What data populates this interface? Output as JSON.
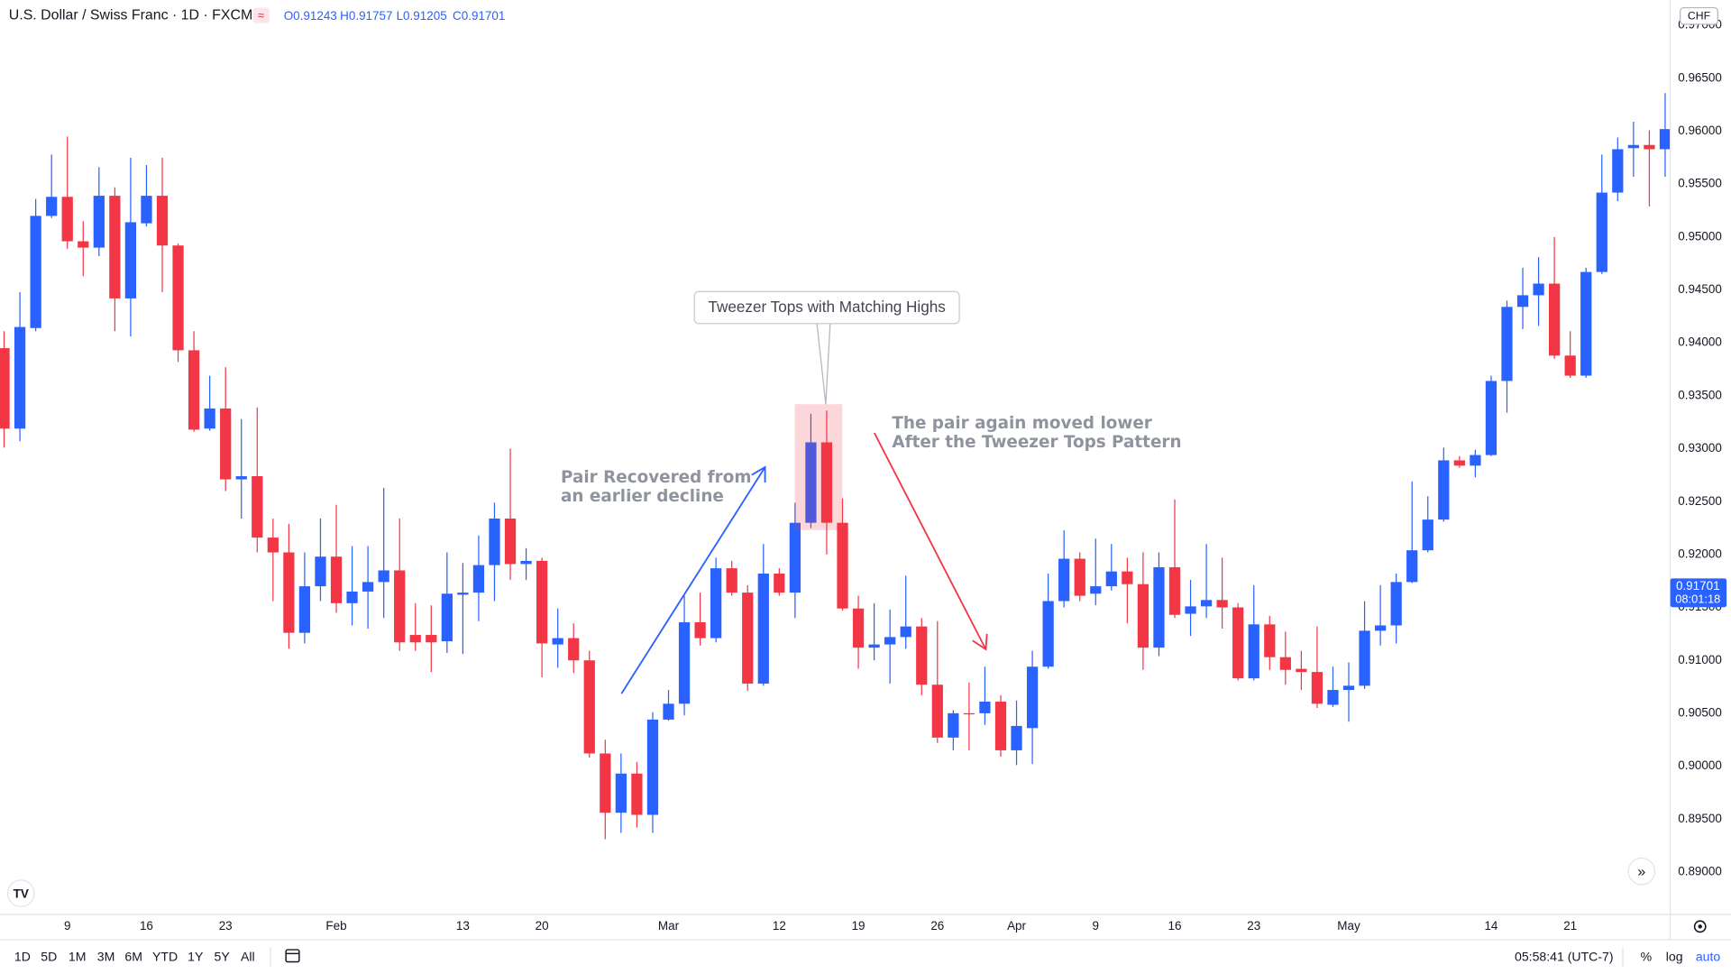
{
  "chart_data": {
    "type": "candlestick",
    "title": "U.S. Dollar / Swiss Franc · 1D · FXCM",
    "legend_ohlc": [
      "O0.91243",
      "H0.91757",
      "L0.91205",
      "C0.91701"
    ],
    "currency": "CHF",
    "last_price": 0.91701,
    "countdown": "08:01:18",
    "up_color": "#2962ff",
    "down_color": "#f23645",
    "grid": false,
    "ylim": [
      0.8861,
      0.9724
    ],
    "yticks": [
      {
        "value": 0.89,
        "label": "0.89000"
      },
      {
        "value": 0.895,
        "label": "0.89500"
      },
      {
        "value": 0.9,
        "label": "0.90000"
      },
      {
        "value": 0.905,
        "label": "0.90500"
      },
      {
        "value": 0.91,
        "label": "0.91000"
      },
      {
        "value": 0.915,
        "label": "0.91500"
      },
      {
        "value": 0.92,
        "label": "0.92000"
      },
      {
        "value": 0.925,
        "label": "0.92500"
      },
      {
        "value": 0.93,
        "label": "0.93000"
      },
      {
        "value": 0.935,
        "label": "0.93500"
      },
      {
        "value": 0.94,
        "label": "0.94000"
      },
      {
        "value": 0.945,
        "label": "0.94500"
      },
      {
        "value": 0.95,
        "label": "0.95000"
      },
      {
        "value": 0.955,
        "label": "0.95500"
      },
      {
        "value": 0.96,
        "label": "0.96000"
      },
      {
        "value": 0.965,
        "label": "0.96500"
      },
      {
        "value": 0.97,
        "label": "0.97000"
      }
    ],
    "categories": [
      null,
      null,
      null,
      null,
      "9",
      null,
      null,
      null,
      null,
      "16",
      null,
      null,
      null,
      null,
      "23",
      null,
      null,
      null,
      null,
      null,
      null,
      "Feb",
      null,
      null,
      null,
      null,
      null,
      null,
      null,
      "13",
      null,
      null,
      null,
      null,
      "20",
      null,
      null,
      null,
      null,
      null,
      null,
      null,
      "Mar",
      null,
      null,
      null,
      null,
      null,
      null,
      "12",
      null,
      null,
      null,
      null,
      "19",
      null,
      null,
      null,
      null,
      "26",
      null,
      null,
      null,
      null,
      "Apr",
      null,
      null,
      null,
      null,
      "9",
      null,
      null,
      null,
      null,
      "16",
      null,
      null,
      null,
      null,
      "23",
      null,
      null,
      null,
      null,
      null,
      "May",
      null,
      null,
      null,
      null,
      null,
      null,
      null,
      null,
      "14",
      null,
      null,
      null,
      null,
      "21",
      null,
      null,
      null,
      null,
      null,
      null
    ],
    "open": [
      0.9395,
      0.9319,
      0.9414,
      0.952,
      0.9538,
      0.9496,
      0.949,
      0.9539,
      0.9442,
      0.9513,
      0.9539,
      0.9492,
      0.9393,
      0.9319,
      0.9338,
      0.9271,
      0.9274,
      0.9216,
      0.9202,
      0.9126,
      0.917,
      0.9198,
      0.9154,
      0.9165,
      0.9174,
      0.9185,
      0.9124,
      0.9124,
      0.9118,
      0.9162,
      0.9164,
      0.919,
      0.9234,
      0.9191,
      0.9194,
      0.9115,
      0.9121,
      0.91,
      0.9012,
      0.8956,
      0.8993,
      0.8954,
      0.9044,
      0.9059,
      0.9136,
      0.9121,
      0.9187,
      0.9164,
      0.9078,
      0.9182,
      0.9164,
      0.923,
      0.9306,
      0.923,
      0.9149,
      0.9112,
      0.9115,
      0.9122,
      0.9132,
      0.9077,
      0.9027,
      0.905,
      0.905,
      0.9061,
      0.9015,
      0.9036,
      0.9094,
      0.9156,
      0.9196,
      0.9163,
      0.917,
      0.9184,
      0.9172,
      0.9112,
      0.9188,
      0.9144,
      0.9151,
      0.9157,
      0.915,
      0.9083,
      0.9134,
      0.9103,
      0.9092,
      0.9089,
      0.9058,
      0.9072,
      0.9076,
      0.9128,
      0.9133,
      0.9174,
      0.9204,
      0.9233,
      0.9289,
      0.9284,
      0.9294,
      0.9364,
      0.9434,
      0.9445,
      0.9456,
      0.9388,
      0.9369,
      0.9467,
      0.9542,
      0.9584,
      0.9587,
      0.9583
    ],
    "high": [
      0.9411,
      0.9448,
      0.9536,
      0.9578,
      0.9595,
      0.9515,
      0.9566,
      0.9547,
      0.9575,
      0.9568,
      0.9575,
      0.9494,
      0.9411,
      0.9369,
      0.9377,
      0.9328,
      0.9339,
      0.9234,
      0.9229,
      0.9202,
      0.9234,
      0.9247,
      0.9208,
      0.9208,
      0.9263,
      0.9234,
      0.9154,
      0.9152,
      0.9202,
      0.9192,
      0.9218,
      0.9249,
      0.93,
      0.9206,
      0.9197,
      0.9149,
      0.9135,
      0.9109,
      0.9025,
      0.9012,
      0.9004,
      0.9051,
      0.9072,
      0.9161,
      0.9164,
      0.9197,
      0.9194,
      0.9171,
      0.921,
      0.9187,
      0.9249,
      0.9333,
      0.9336,
      0.9253,
      0.9161,
      0.9154,
      0.9148,
      0.918,
      0.914,
      0.9137,
      0.9053,
      0.9079,
      0.9094,
      0.9067,
      0.9062,
      0.9109,
      0.9182,
      0.9223,
      0.9202,
      0.9215,
      0.921,
      0.9197,
      0.9202,
      0.9202,
      0.9252,
      0.9176,
      0.921,
      0.9197,
      0.9154,
      0.9171,
      0.9142,
      0.9127,
      0.9109,
      0.9132,
      0.9094,
      0.9098,
      0.9156,
      0.9171,
      0.9182,
      0.9269,
      0.9255,
      0.9301,
      0.9293,
      0.9299,
      0.9369,
      0.944,
      0.9471,
      0.9481,
      0.95,
      0.9411,
      0.9471,
      0.9578,
      0.9594,
      0.9609,
      0.9601,
      0.9636
    ],
    "low": [
      0.9301,
      0.9307,
      0.9411,
      0.9518,
      0.9489,
      0.9463,
      0.9482,
      0.9411,
      0.9406,
      0.951,
      0.9448,
      0.9382,
      0.9316,
      0.9317,
      0.926,
      0.9234,
      0.9202,
      0.9156,
      0.9111,
      0.9116,
      0.9156,
      0.9145,
      0.9133,
      0.913,
      0.914,
      0.9109,
      0.9109,
      0.9089,
      0.9107,
      0.9106,
      0.9137,
      0.9156,
      0.9176,
      0.9176,
      0.9084,
      0.9093,
      0.9088,
      0.9008,
      0.8931,
      0.8937,
      0.8942,
      0.8937,
      0.9043,
      0.9048,
      0.9114,
      0.9117,
      0.9161,
      0.9071,
      0.9076,
      0.9161,
      0.914,
      0.9225,
      0.92,
      0.9147,
      0.9092,
      0.91,
      0.9078,
      0.9111,
      0.9067,
      0.9022,
      0.9015,
      0.9015,
      0.9039,
      0.9009,
      0.9001,
      0.9002,
      0.9092,
      0.915,
      0.9156,
      0.9152,
      0.9166,
      0.9135,
      0.9091,
      0.9104,
      0.914,
      0.9123,
      0.914,
      0.913,
      0.9081,
      0.9081,
      0.9091,
      0.9077,
      0.9072,
      0.9055,
      0.9056,
      0.9042,
      0.9073,
      0.9114,
      0.9116,
      0.9173,
      0.9202,
      0.9231,
      0.9282,
      0.9273,
      0.9293,
      0.9334,
      0.9413,
      0.9416,
      0.9385,
      0.9367,
      0.9367,
      0.9465,
      0.9534,
      0.9557,
      0.9529,
      0.9557
    ],
    "close": [
      0.9319,
      0.9415,
      0.952,
      0.9538,
      0.9496,
      0.949,
      0.9539,
      0.9442,
      0.9514,
      0.9539,
      0.9492,
      0.9393,
      0.9318,
      0.9338,
      0.9271,
      0.9274,
      0.9216,
      0.9202,
      0.9126,
      0.917,
      0.9198,
      0.9154,
      0.9165,
      0.9174,
      0.9185,
      0.9117,
      0.9117,
      0.9117,
      0.9163,
      0.9164,
      0.919,
      0.9234,
      0.9191,
      0.9194,
      0.9116,
      0.9121,
      0.91,
      0.9012,
      0.8956,
      0.8993,
      0.8954,
      0.9044,
      0.9059,
      0.9136,
      0.9121,
      0.9187,
      0.9164,
      0.9078,
      0.9182,
      0.9164,
      0.923,
      0.9306,
      0.923,
      0.9149,
      0.9112,
      0.9115,
      0.9122,
      0.9132,
      0.9077,
      0.9027,
      0.905,
      0.9049,
      0.9061,
      0.9015,
      0.9038,
      0.9094,
      0.9156,
      0.9196,
      0.9161,
      0.917,
      0.9184,
      0.9172,
      0.9112,
      0.9188,
      0.9143,
      0.9151,
      0.9157,
      0.915,
      0.9083,
      0.9134,
      0.9103,
      0.9091,
      0.9089,
      0.9059,
      0.9072,
      0.9076,
      0.9128,
      0.9133,
      0.9174,
      0.9204,
      0.9233,
      0.9289,
      0.9284,
      0.9294,
      0.9364,
      0.9434,
      0.9445,
      0.9456,
      0.9388,
      0.9369,
      0.9467,
      0.9542,
      0.9583,
      0.9587,
      0.9583,
      0.9602
    ],
    "annotations": {
      "callout": "Tweezer Tops with Matching Highs",
      "left_note": [
        "Pair Recovered from",
        "an earlier decline"
      ],
      "right_note": [
        "The pair again moved lower",
        "After the Tweezer Tops Pattern"
      ]
    }
  },
  "toolbar": {
    "ranges": [
      "1D",
      "5D",
      "1M",
      "3M",
      "6M",
      "YTD",
      "1Y",
      "5Y",
      "All"
    ],
    "clock": "05:58:41 (UTC-7)",
    "percent": "%",
    "log": "log",
    "auto": "auto"
  }
}
